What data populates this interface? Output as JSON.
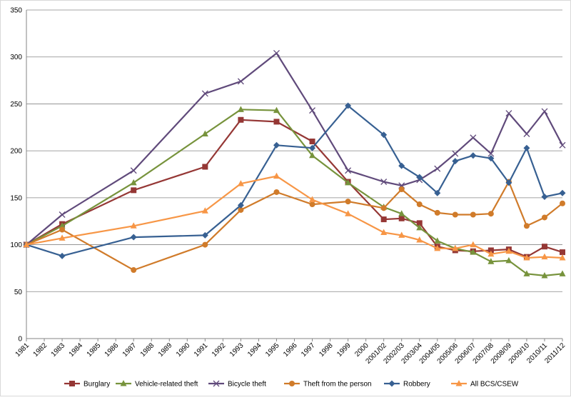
{
  "chart_data": {
    "type": "line",
    "title": "",
    "xlabel": "",
    "ylabel": "",
    "ylim": [
      0,
      350
    ],
    "yticks": [
      0,
      50,
      100,
      150,
      200,
      250,
      300,
      350
    ],
    "grid": "horizontal",
    "legend_position": "bottom",
    "categories": [
      "1981",
      "1982",
      "1983",
      "1984",
      "1985",
      "1986",
      "1987",
      "1988",
      "1989",
      "1990",
      "1991",
      "1992",
      "1993",
      "1994",
      "1995",
      "1996",
      "1997",
      "1998",
      "1999",
      "2000",
      "2001/02",
      "2002/03",
      "2003/04",
      "2004/05",
      "2005/06",
      "2006/07",
      "2007/08",
      "2008/09",
      "2009/10",
      "2010/11",
      "2011/12"
    ],
    "series": [
      {
        "name": "Burglary",
        "color": "#953735",
        "marker": "square",
        "points": [
          [
            "1981",
            100
          ],
          [
            "1983",
            122
          ],
          [
            "1987",
            158
          ],
          [
            "1991",
            183
          ],
          [
            "1993",
            233
          ],
          [
            "1995",
            231
          ],
          [
            "1997",
            210
          ],
          [
            "1999",
            167
          ],
          [
            "2001/02",
            127
          ],
          [
            "2002/03",
            128
          ],
          [
            "2003/04",
            123
          ],
          [
            "2004/05",
            98
          ],
          [
            "2005/06",
            94
          ],
          [
            "2006/07",
            93
          ],
          [
            "2007/08",
            94
          ],
          [
            "2008/09",
            95
          ],
          [
            "2009/10",
            87
          ],
          [
            "2010/11",
            98
          ],
          [
            "2011/12",
            92
          ]
        ]
      },
      {
        "name": "Vehicle-related theft",
        "color": "#77933C",
        "marker": "triangle",
        "points": [
          [
            "1981",
            100
          ],
          [
            "1983",
            120
          ],
          [
            "1987",
            166
          ],
          [
            "1991",
            218
          ],
          [
            "1993",
            244
          ],
          [
            "1995",
            243
          ],
          [
            "1997",
            195
          ],
          [
            "1999",
            166
          ],
          [
            "2001/02",
            140
          ],
          [
            "2002/03",
            133
          ],
          [
            "2003/04",
            118
          ],
          [
            "2004/05",
            104
          ],
          [
            "2005/06",
            96
          ],
          [
            "2006/07",
            92
          ],
          [
            "2007/08",
            82
          ],
          [
            "2008/09",
            83
          ],
          [
            "2009/10",
            69
          ],
          [
            "2010/11",
            67
          ],
          [
            "2011/12",
            69
          ]
        ]
      },
      {
        "name": "Bicycle theft",
        "color": "#604A7B",
        "marker": "x",
        "points": [
          [
            "1981",
            100
          ],
          [
            "1983",
            132
          ],
          [
            "1987",
            179
          ],
          [
            "1991",
            261
          ],
          [
            "1993",
            274
          ],
          [
            "1995",
            304
          ],
          [
            "1997",
            243
          ],
          [
            "1999",
            179
          ],
          [
            "2001/02",
            167
          ],
          [
            "2002/03",
            163
          ],
          [
            "2003/04",
            169
          ],
          [
            "2004/05",
            181
          ],
          [
            "2005/06",
            197
          ],
          [
            "2006/07",
            214
          ],
          [
            "2007/08",
            197
          ],
          [
            "2008/09",
            240
          ],
          [
            "2009/10",
            218
          ],
          [
            "2010/11",
            242
          ],
          [
            "2011/12",
            206
          ]
        ]
      },
      {
        "name": "Theft from the person",
        "color": "#D07B2A",
        "marker": "circle",
        "points": [
          [
            "1981",
            100
          ],
          [
            "1983",
            116
          ],
          [
            "1987",
            73
          ],
          [
            "1991",
            100
          ],
          [
            "1993",
            137
          ],
          [
            "1995",
            156
          ],
          [
            "1997",
            143
          ],
          [
            "1999",
            146
          ],
          [
            "2001/02",
            139
          ],
          [
            "2002/03",
            159
          ],
          [
            "2003/04",
            143
          ],
          [
            "2004/05",
            134
          ],
          [
            "2005/06",
            132
          ],
          [
            "2006/07",
            132
          ],
          [
            "2007/08",
            133
          ],
          [
            "2008/09",
            167
          ],
          [
            "2009/10",
            120
          ],
          [
            "2010/11",
            129
          ],
          [
            "2011/12",
            144
          ]
        ]
      },
      {
        "name": "Robbery",
        "color": "#376092",
        "marker": "diamond",
        "points": [
          [
            "1981",
            100
          ],
          [
            "1983",
            88
          ],
          [
            "1987",
            108
          ],
          [
            "1991",
            110
          ],
          [
            "1993",
            142
          ],
          [
            "1995",
            206
          ],
          [
            "1997",
            203
          ],
          [
            "1999",
            248
          ],
          [
            "2001/02",
            217
          ],
          [
            "2002/03",
            184
          ],
          [
            "2003/04",
            172
          ],
          [
            "2004/05",
            155
          ],
          [
            "2005/06",
            189
          ],
          [
            "2006/07",
            195
          ],
          [
            "2007/08",
            192
          ],
          [
            "2008/09",
            166
          ],
          [
            "2009/10",
            203
          ],
          [
            "2010/11",
            151
          ],
          [
            "2011/12",
            155
          ]
        ]
      },
      {
        "name": "All BCS/CSEW",
        "color": "#F79646",
        "marker": "triangle",
        "points": [
          [
            "1981",
            100
          ],
          [
            "1983",
            107
          ],
          [
            "1987",
            120
          ],
          [
            "1991",
            136
          ],
          [
            "1993",
            165
          ],
          [
            "1995",
            173
          ],
          [
            "1997",
            148
          ],
          [
            "1999",
            133
          ],
          [
            "2001/02",
            113
          ],
          [
            "2002/03",
            110
          ],
          [
            "2003/04",
            105
          ],
          [
            "2004/05",
            96
          ],
          [
            "2005/06",
            96
          ],
          [
            "2006/07",
            100
          ],
          [
            "2007/08",
            90
          ],
          [
            "2008/09",
            93
          ],
          [
            "2009/10",
            86
          ],
          [
            "2010/11",
            87
          ],
          [
            "2011/12",
            86
          ]
        ]
      }
    ]
  }
}
